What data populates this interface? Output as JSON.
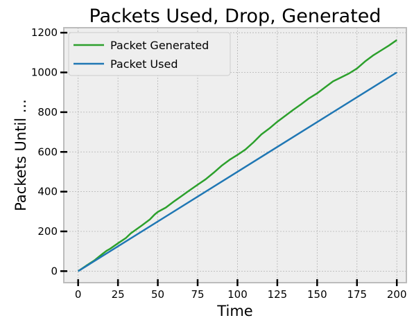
{
  "chart_data": {
    "type": "line",
    "title": "Packets Used, Drop, Generated",
    "xlabel": "Time",
    "ylabel": "Packets Until ...",
    "xlim": [
      -9,
      206
    ],
    "ylim": [
      -58,
      1225
    ],
    "xticks": [
      0,
      25,
      50,
      75,
      100,
      125,
      150,
      175,
      200
    ],
    "yticks": [
      0,
      200,
      400,
      600,
      800,
      1000,
      1200
    ],
    "grid": true,
    "legend_position": "top-left",
    "series": [
      {
        "name": "Packet Generated",
        "color": "#2ca02c",
        "x": [
          0,
          5,
          10,
          15,
          18,
          20,
          25,
          30,
          33,
          40,
          45,
          48,
          50,
          55,
          60,
          65,
          70,
          75,
          80,
          85,
          90,
          95,
          100,
          105,
          110,
          115,
          120,
          125,
          130,
          135,
          140,
          145,
          150,
          155,
          160,
          165,
          170,
          175,
          180,
          185,
          190,
          195,
          200
        ],
        "values": [
          0,
          27,
          53,
          85,
          103,
          112,
          140,
          167,
          190,
          230,
          260,
          285,
          298,
          320,
          350,
          378,
          407,
          435,
          462,
          495,
          530,
          560,
          585,
          612,
          648,
          688,
          718,
          752,
          782,
          812,
          840,
          870,
          895,
          925,
          955,
          975,
          995,
          1020,
          1055,
          1085,
          1110,
          1135,
          1163
        ]
      },
      {
        "name": "Packet Used",
        "color": "#1f77b4",
        "x": [
          0,
          200
        ],
        "values": [
          0,
          1000
        ]
      }
    ]
  }
}
